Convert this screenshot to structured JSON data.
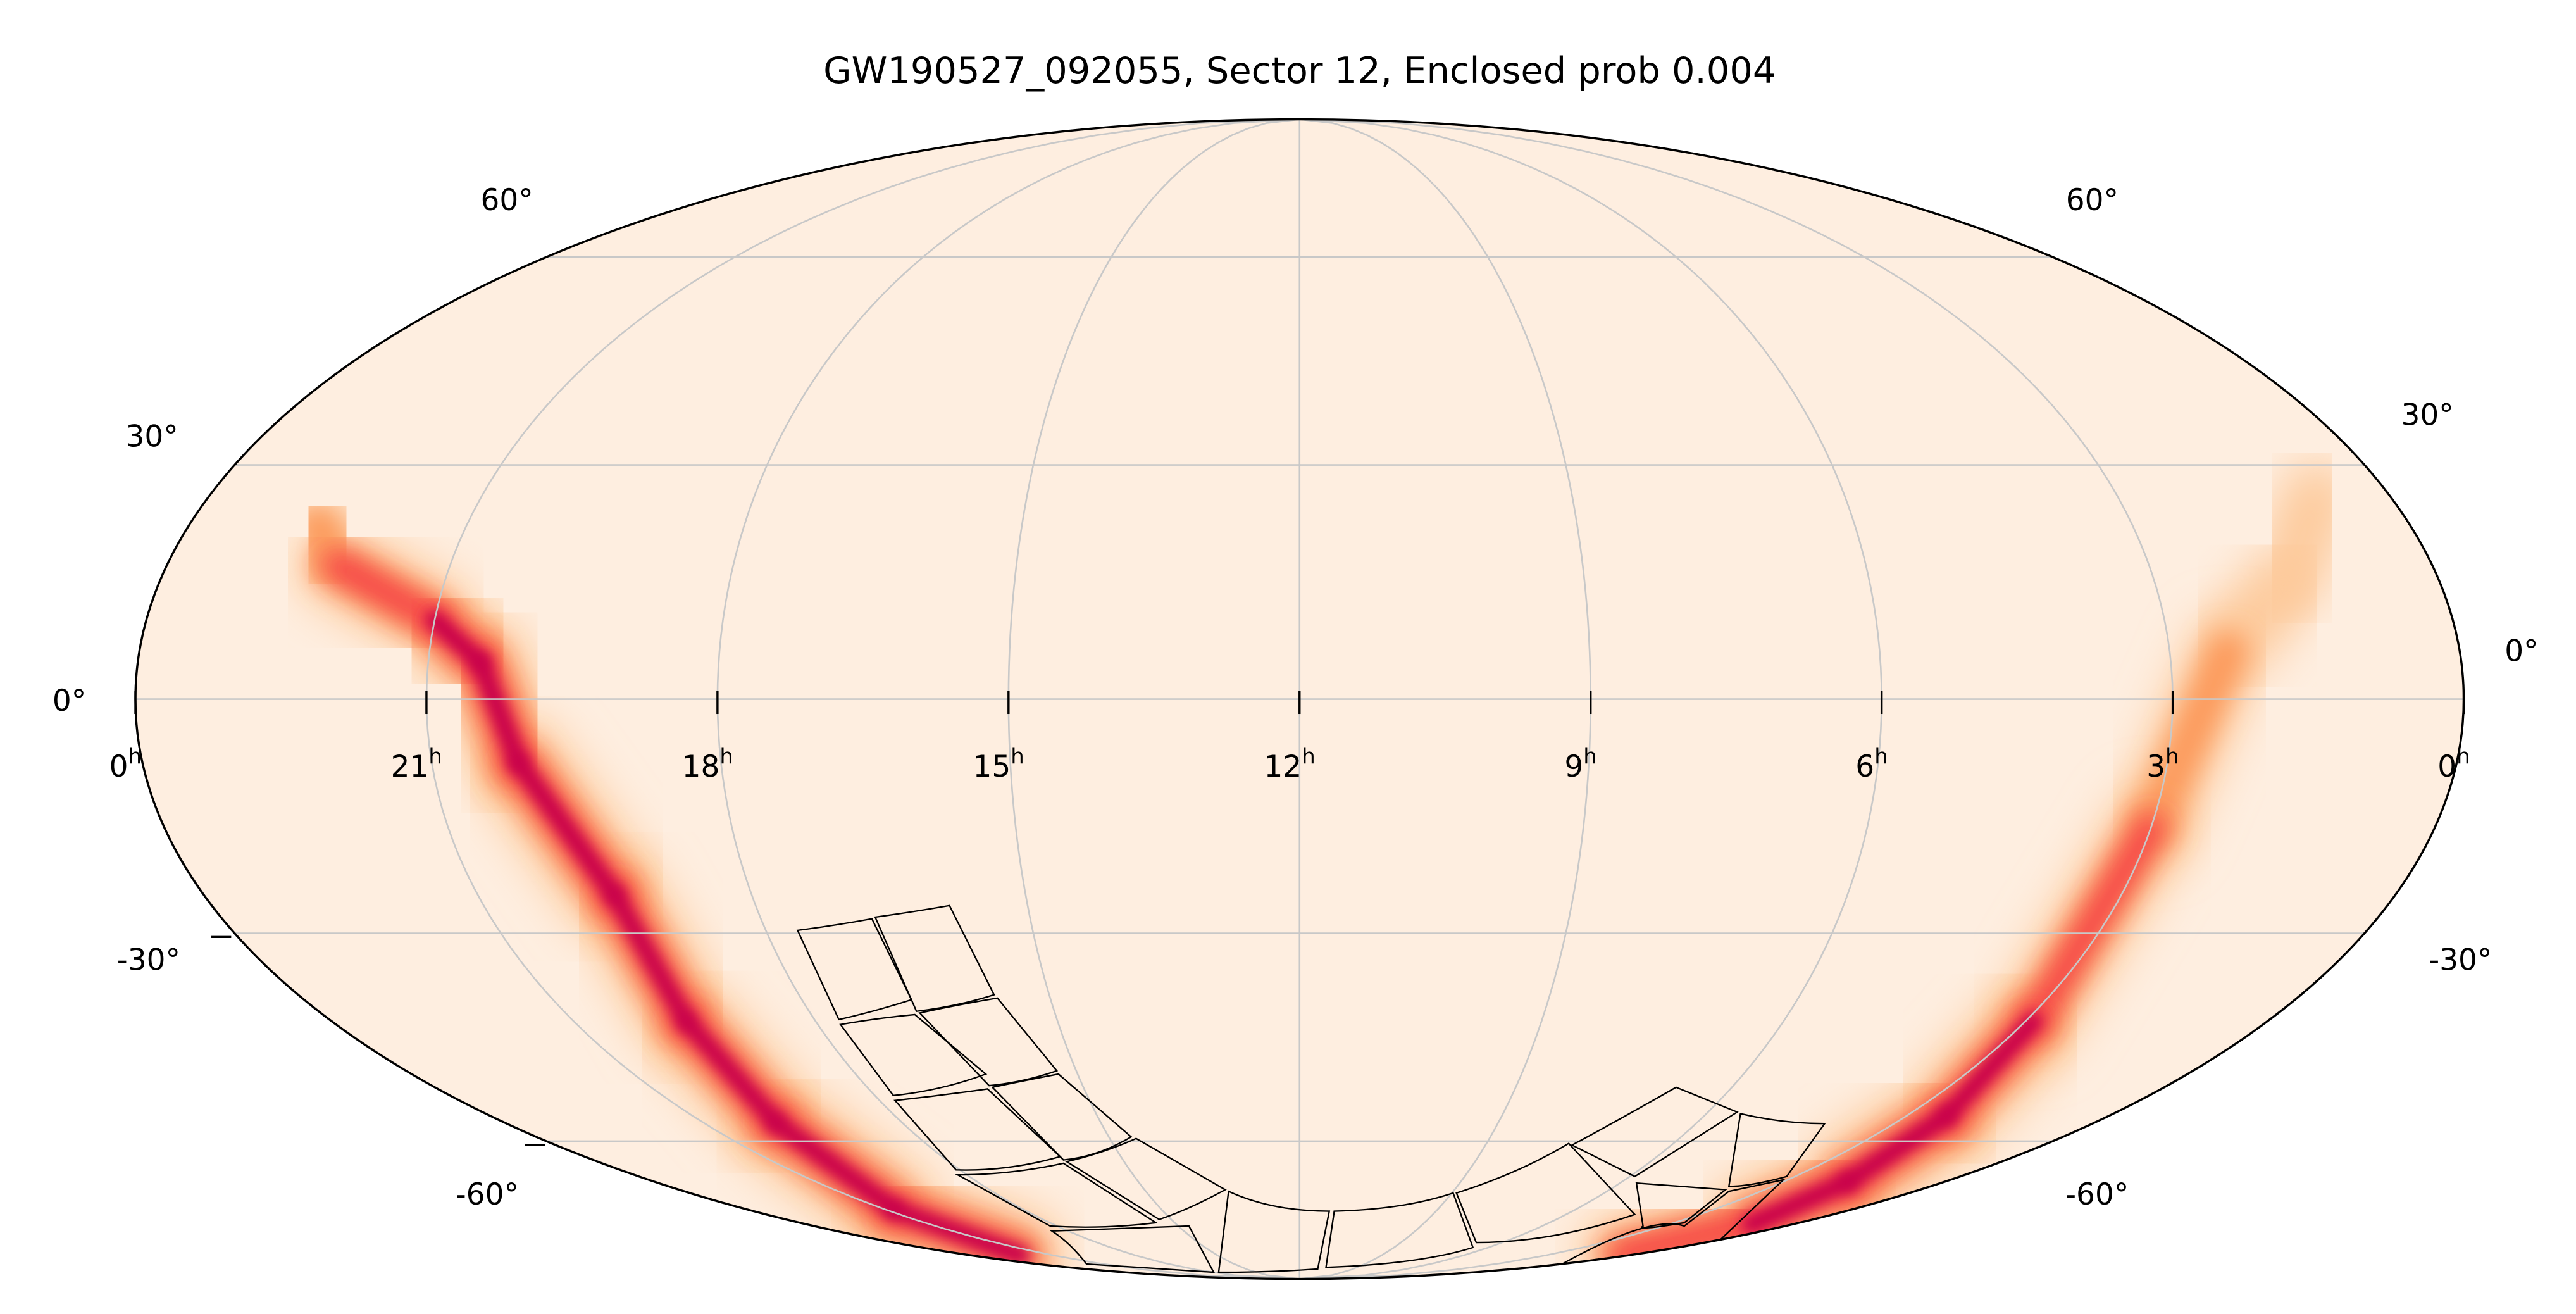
{
  "chart_data": {
    "type": "heatmap",
    "projection": "mollweide",
    "title": "GW190527_092055, Sector 12, Enclosed prob 0.004",
    "xaxis": {
      "quantity": "right ascension",
      "ticks": [
        24,
        21,
        18,
        15,
        12,
        9,
        6,
        3,
        0
      ],
      "ticklabels": [
        {
          "base": "0",
          "sup": "h"
        },
        {
          "base": "21",
          "sup": "h"
        },
        {
          "base": "18",
          "sup": "h"
        },
        {
          "base": "15",
          "sup": "h"
        },
        {
          "base": "12",
          "sup": "h"
        },
        {
          "base": "9",
          "sup": "h"
        },
        {
          "base": "6",
          "sup": "h"
        },
        {
          "base": "3",
          "sup": "h"
        },
        {
          "base": "0",
          "sup": "h"
        }
      ]
    },
    "yaxis": {
      "quantity": "declination",
      "ticks": [
        60,
        30,
        0,
        -30,
        -60
      ],
      "ticklabels": [
        "60°",
        "30°",
        "0°",
        "-30°",
        "-60°"
      ]
    },
    "grid": true,
    "colormap": [
      "#feeee0",
      "#fdb47a",
      "#fb6a3a",
      "#f0164a",
      "#b0004a",
      "#4a0010"
    ],
    "probability_ridges": [
      {
        "region": "western arc",
        "points": [
          {
            "ra_h": 22.6,
            "dec": 22,
            "level": 0.35
          },
          {
            "ra_h": 22.2,
            "dec": 17,
            "level": 0.55
          },
          {
            "ra_h": 21.0,
            "dec": 10,
            "level": 0.8
          },
          {
            "ra_h": 20.46,
            "dec": 4.6,
            "level": 1.0
          },
          {
            "ra_h": 20.1,
            "dec": -8,
            "level": 0.85
          },
          {
            "ra_h": 19.5,
            "dec": -25,
            "level": 0.8
          },
          {
            "ra_h": 19.6,
            "dec": -42,
            "level": 0.7
          },
          {
            "ra_h": 19.9,
            "dec": -57,
            "level": 0.75
          },
          {
            "ra_h": 20.8,
            "dec": -72,
            "level": 0.8
          },
          {
            "ra_h": 22.2,
            "dec": -82,
            "level": 0.7
          }
        ]
      },
      {
        "region": "eastern arc",
        "points": [
          {
            "ra_h": 0.8,
            "dec": 26,
            "level": 0.2
          },
          {
            "ra_h": 1.6,
            "dec": 15,
            "level": 0.25
          },
          {
            "ra_h": 2.4,
            "dec": 6,
            "level": 0.3
          },
          {
            "ra_h": 3.0,
            "dec": -16,
            "level": 0.45
          },
          {
            "ra_h": 2.9,
            "dec": -42,
            "level": 0.75
          },
          {
            "ra_h": 2.4,
            "dec": -56,
            "level": 0.85
          },
          {
            "ra_h": 1.8,
            "dec": -66.9,
            "level": 1.0
          },
          {
            "ra_h": 1.0,
            "dec": -75,
            "level": 0.8
          },
          {
            "ra_h": 0.25,
            "dec": -82,
            "level": 0.5
          }
        ]
      }
    ]
  }
}
